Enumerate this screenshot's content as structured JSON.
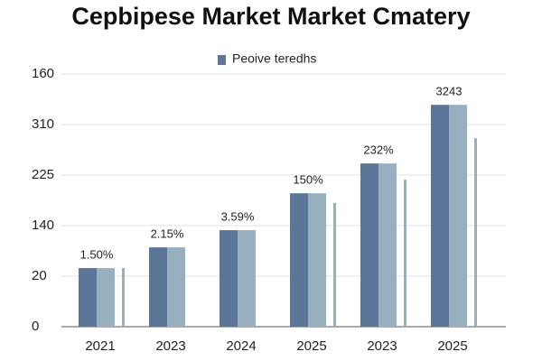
{
  "chart_data": {
    "type": "bar",
    "title": "Cepbipese Market Market Cmatery",
    "categories": [
      "2021",
      "2023",
      "2024",
      "2025",
      "2023",
      "2025"
    ],
    "series": [
      {
        "name": "Peoive teredhs",
        "color": "#5b7699",
        "values": [
          1.16,
          1.57,
          1.91,
          2.64,
          3.23,
          4.39
        ]
      },
      {
        "color": "#97afbf",
        "values": [
          1.16,
          1.57,
          1.91,
          2.64,
          3.23,
          4.39
        ]
      },
      {
        "color": "#97afbf",
        "values": [
          1.16,
          null,
          null,
          2.45,
          2.91,
          3.73
        ]
      }
    ],
    "annotations": [
      "1.50%",
      "2.15%",
      "3.59%",
      "150%",
      "232%",
      "3243"
    ],
    "ylim": [
      0,
      5
    ],
    "yticks": [
      0,
      {
        "value": 1,
        "label": "20"
      },
      {
        "value": 2,
        "label": "140"
      },
      {
        "value": 3,
        "label": "225"
      },
      {
        "value": 4,
        "label": "310"
      },
      {
        "value": 5,
        "label": "160"
      }
    ],
    "grid": true,
    "legend": "top"
  }
}
